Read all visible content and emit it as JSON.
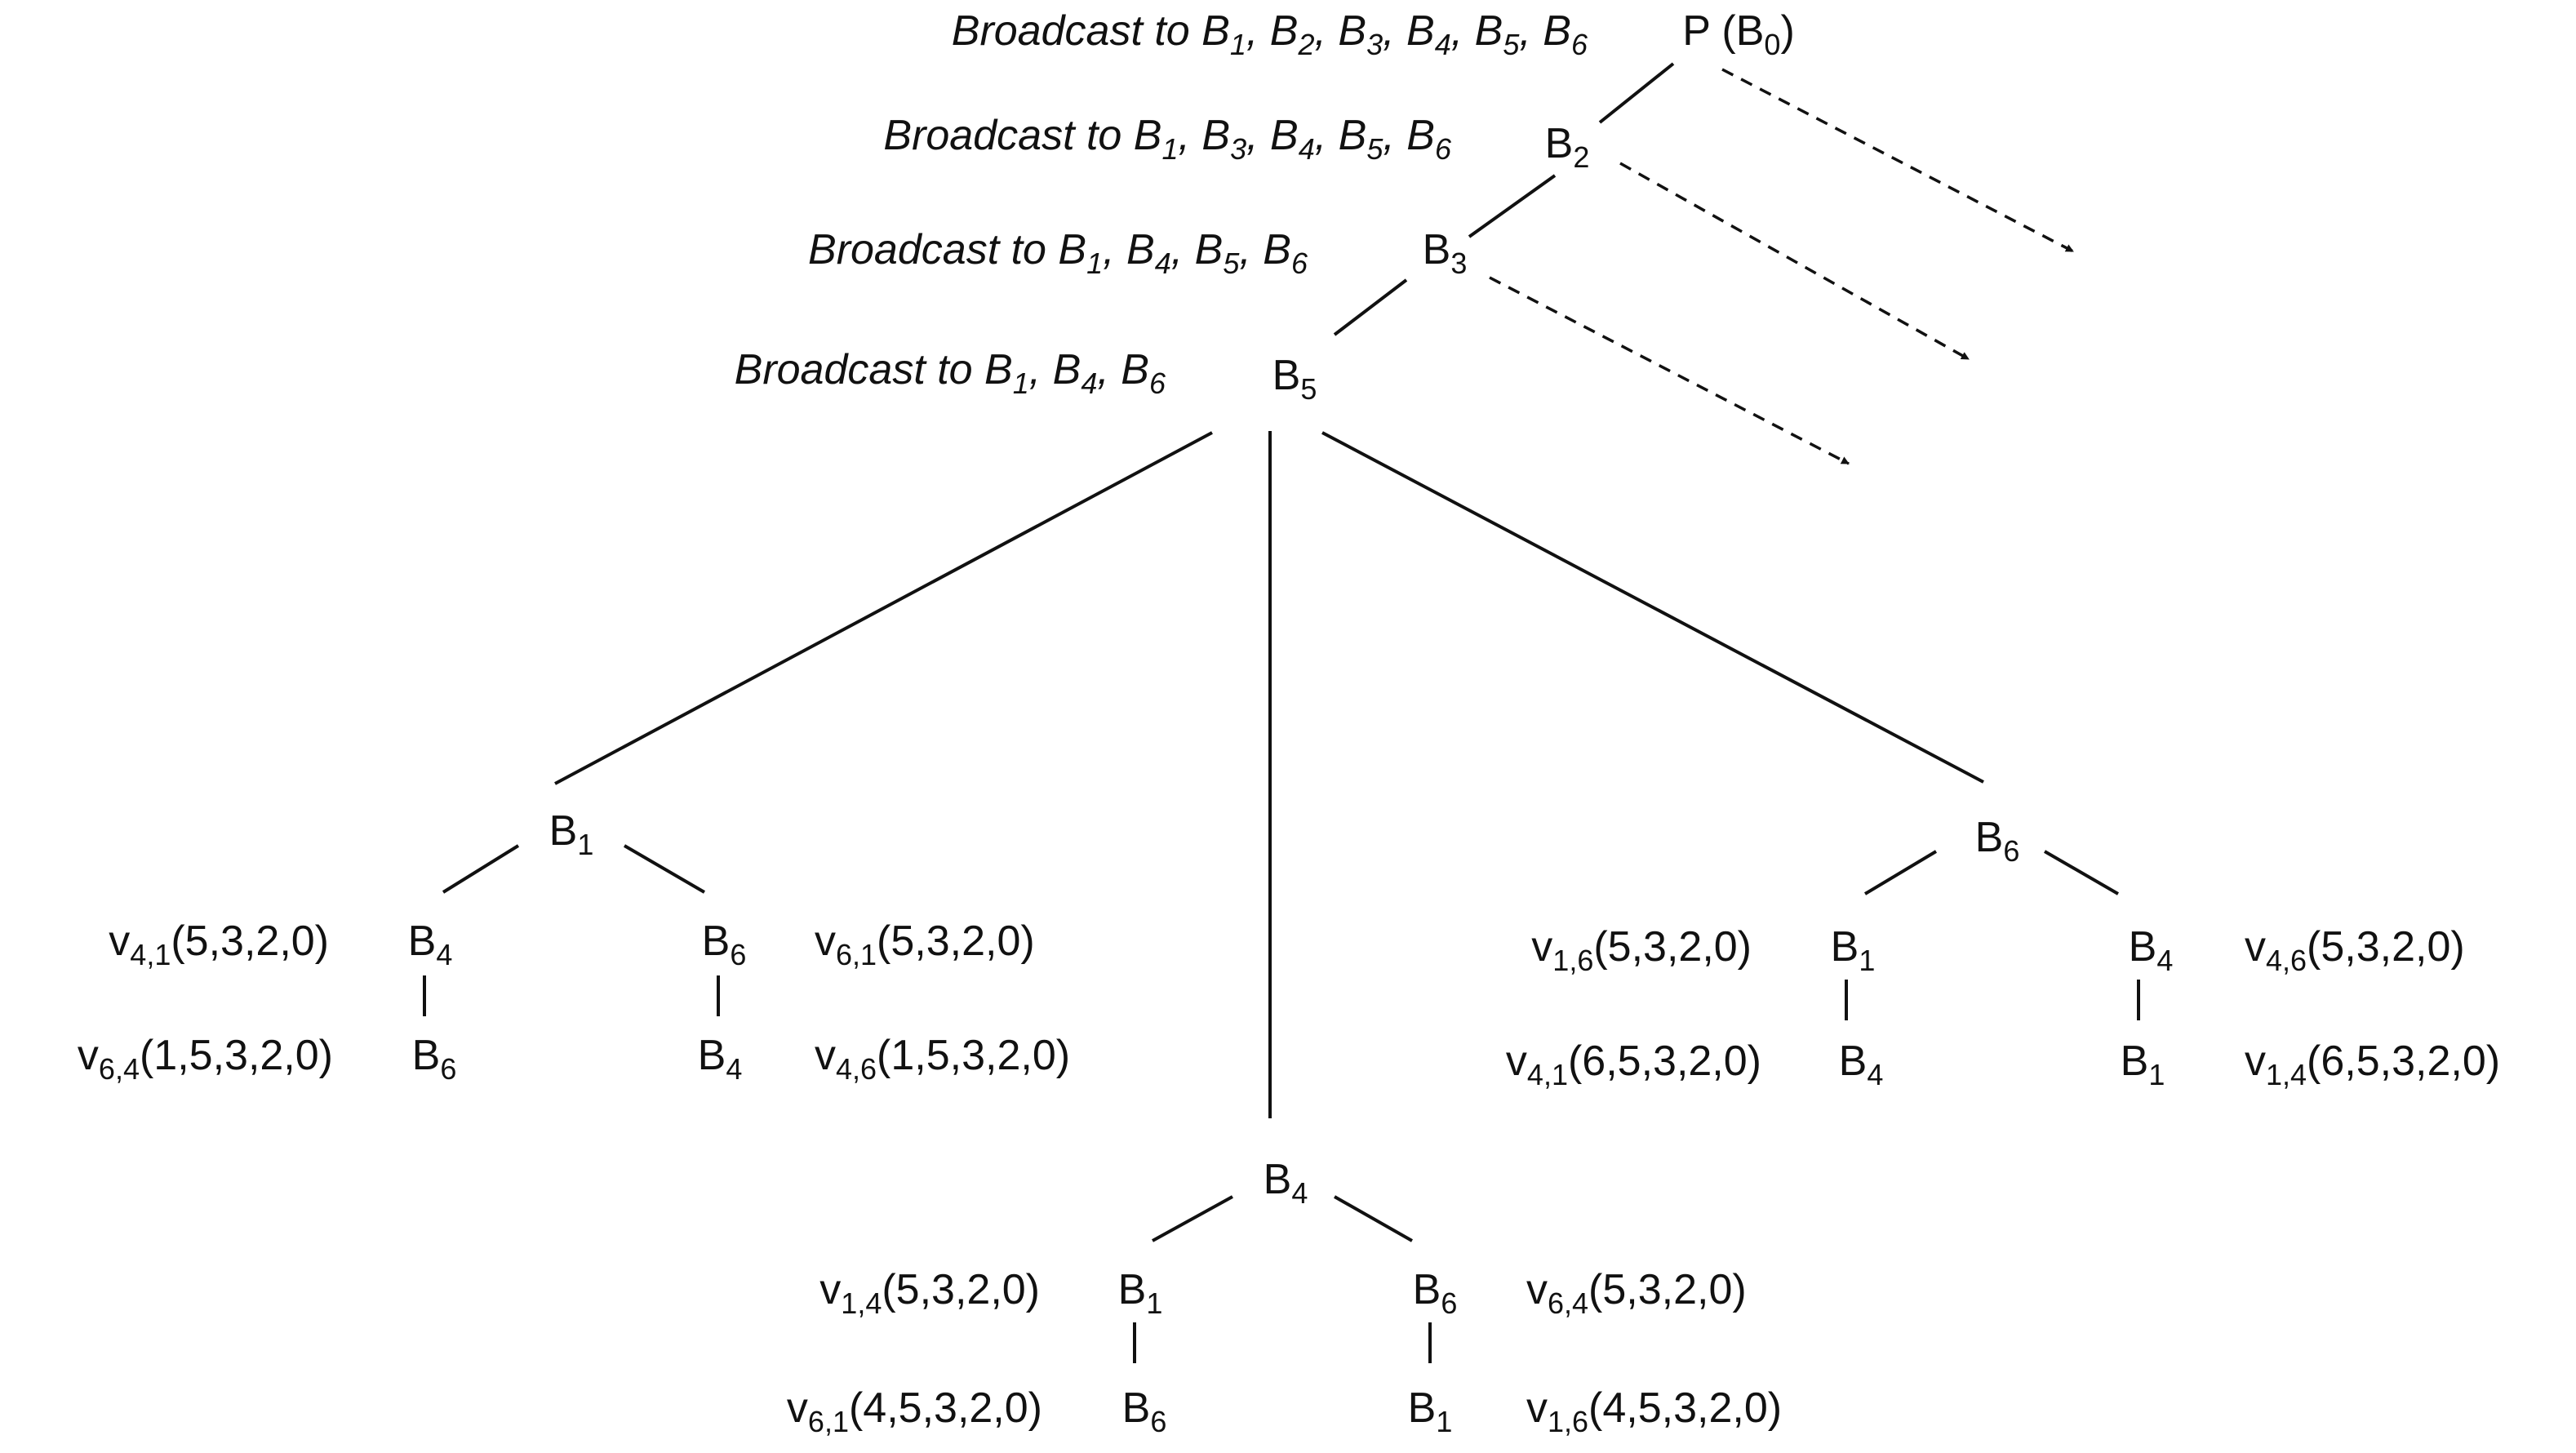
{
  "broadcasts": [
    {
      "prefix": "Broadcast to ",
      "targets": [
        "1",
        "2",
        "3",
        "4",
        "5",
        "6"
      ]
    },
    {
      "prefix": "Broadcast to ",
      "targets": [
        "1",
        "3",
        "4",
        "5",
        "6"
      ]
    },
    {
      "prefix": "Broadcast to ",
      "targets": [
        "1",
        "4",
        "5",
        "6"
      ]
    },
    {
      "prefix": "Broadcast to ",
      "targets": [
        "1",
        "4",
        "6"
      ]
    }
  ],
  "root": {
    "label": "P",
    "paren_open": " (B",
    "sub": "0",
    "paren_close": ")"
  },
  "nodes": {
    "b2": {
      "base": "B",
      "sub": "2"
    },
    "b3": {
      "base": "B",
      "sub": "3"
    },
    "b5": {
      "base": "B",
      "sub": "5"
    },
    "b1_left": {
      "base": "B",
      "sub": "1"
    },
    "b4_left": {
      "base": "B",
      "sub": "4"
    },
    "b6_left_child": {
      "base": "B",
      "sub": "6"
    },
    "b6_left": {
      "base": "B",
      "sub": "6"
    },
    "b4_left_child": {
      "base": "B",
      "sub": "4"
    },
    "b4_mid": {
      "base": "B",
      "sub": "4"
    },
    "b1_mid": {
      "base": "B",
      "sub": "1"
    },
    "b6_mid_child": {
      "base": "B",
      "sub": "6"
    },
    "b6_mid": {
      "base": "B",
      "sub": "6"
    },
    "b1_mid_child": {
      "base": "B",
      "sub": "1"
    },
    "b6_right": {
      "base": "B",
      "sub": "6"
    },
    "b1_right": {
      "base": "B",
      "sub": "1"
    },
    "b4_right_child": {
      "base": "B",
      "sub": "4"
    },
    "b4_right": {
      "base": "B",
      "sub": "4"
    },
    "b1_right_child": {
      "base": "B",
      "sub": "1"
    }
  },
  "vectors": {
    "v41_left": {
      "base": "v",
      "sub": "4,1",
      "value": "(5,3,2,0)"
    },
    "v64_left": {
      "base": "v",
      "sub": "6,4",
      "value": "(1,5,3,2,0)"
    },
    "v61_left": {
      "base": "v",
      "sub": "6,1",
      "value": "(5,3,2,0)"
    },
    "v46_left": {
      "base": "v",
      "sub": "4,6",
      "value": "(1,5,3,2,0)"
    },
    "v14_mid": {
      "base": "v",
      "sub": "1,4",
      "value": "(5,3,2,0)"
    },
    "v61_mid": {
      "base": "v",
      "sub": "6,1",
      "value": "(4,5,3,2,0)"
    },
    "v64_mid": {
      "base": "v",
      "sub": "6,4",
      "value": "(5,3,2,0)"
    },
    "v16_mid": {
      "base": "v",
      "sub": "1,6",
      "value": "(4,5,3,2,0)"
    },
    "v16_right": {
      "base": "v",
      "sub": "1,6",
      "value": "(5,3,2,0)"
    },
    "v41_right": {
      "base": "v",
      "sub": "4,1",
      "value": "(6,5,3,2,0)"
    },
    "v46_right": {
      "base": "v",
      "sub": "4,6",
      "value": "(5,3,2,0)"
    },
    "v14_right": {
      "base": "v",
      "sub": "1,4",
      "value": "(6,5,3,2,0)"
    }
  }
}
